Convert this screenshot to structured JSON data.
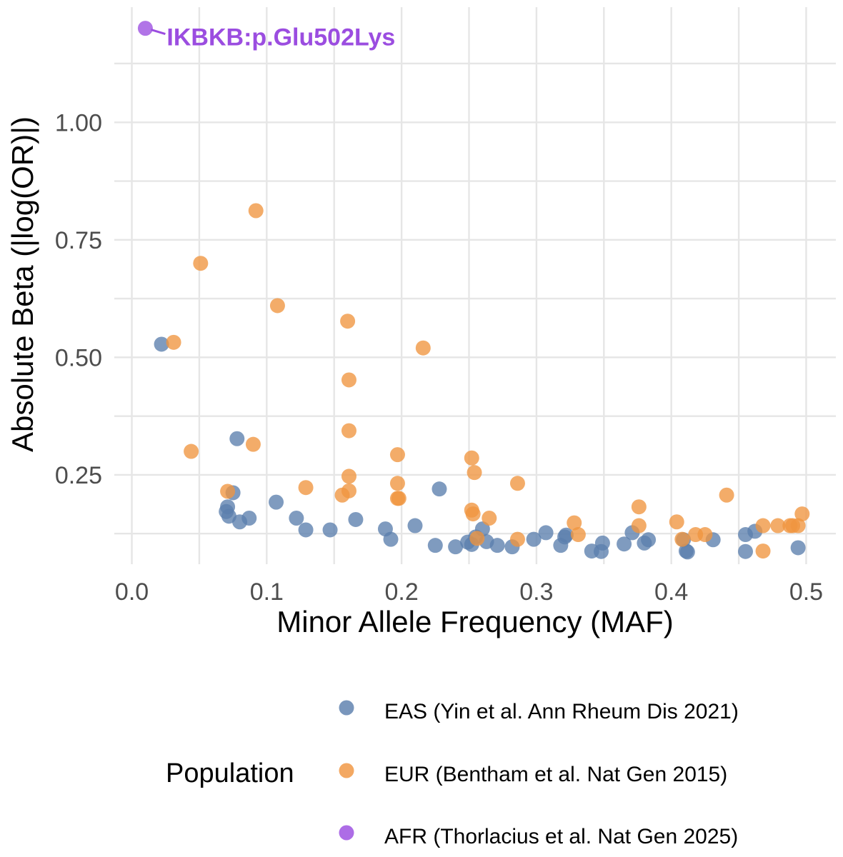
{
  "chart_data": {
    "type": "scatter",
    "xlabel": "Minor Allele Frequency (MAF)",
    "ylabel": "Absolute Beta (|log(OR)|)",
    "xlim": [
      -0.013,
      0.522
    ],
    "ylim": [
      0.06,
      1.245
    ],
    "x_ticks": [
      0.0,
      0.1,
      0.2,
      0.3,
      0.4,
      0.5
    ],
    "x_tick_labels": [
      "0.0",
      "0.1",
      "0.2",
      "0.3",
      "0.4",
      "0.5"
    ],
    "y_ticks": [
      0.25,
      0.5,
      0.75,
      1.0
    ],
    "y_tick_labels": [
      "0.25",
      "0.50",
      "0.75",
      "1.00"
    ],
    "grid": true,
    "legend": {
      "title": "Population",
      "placement": "bottom"
    },
    "series": [
      {
        "name": "EAS (Yin et al. Ann Rheum Dis 2021)",
        "color": "#5b7fad",
        "points": [
          [
            0.022,
            0.528
          ],
          [
            0.078,
            0.327
          ],
          [
            0.075,
            0.212
          ],
          [
            0.071,
            0.182
          ],
          [
            0.07,
            0.172
          ],
          [
            0.072,
            0.162
          ],
          [
            0.08,
            0.15
          ],
          [
            0.087,
            0.158
          ],
          [
            0.107,
            0.192
          ],
          [
            0.122,
            0.158
          ],
          [
            0.129,
            0.133
          ],
          [
            0.147,
            0.133
          ],
          [
            0.166,
            0.155
          ],
          [
            0.188,
            0.135
          ],
          [
            0.192,
            0.113
          ],
          [
            0.21,
            0.142
          ],
          [
            0.225,
            0.1
          ],
          [
            0.228,
            0.22
          ],
          [
            0.24,
            0.097
          ],
          [
            0.249,
            0.107
          ],
          [
            0.252,
            0.102
          ],
          [
            0.255,
            0.118
          ],
          [
            0.26,
            0.135
          ],
          [
            0.263,
            0.108
          ],
          [
            0.271,
            0.1
          ],
          [
            0.282,
            0.097
          ],
          [
            0.298,
            0.113
          ],
          [
            0.307,
            0.127
          ],
          [
            0.318,
            0.1
          ],
          [
            0.321,
            0.118
          ],
          [
            0.322,
            0.122
          ],
          [
            0.341,
            0.088
          ],
          [
            0.348,
            0.087
          ],
          [
            0.349,
            0.105
          ],
          [
            0.365,
            0.103
          ],
          [
            0.371,
            0.127
          ],
          [
            0.38,
            0.105
          ],
          [
            0.383,
            0.112
          ],
          [
            0.409,
            0.112
          ],
          [
            0.411,
            0.088
          ],
          [
            0.412,
            0.086
          ],
          [
            0.431,
            0.112
          ],
          [
            0.455,
            0.087
          ],
          [
            0.455,
            0.123
          ],
          [
            0.462,
            0.13
          ],
          [
            0.494,
            0.095
          ]
        ]
      },
      {
        "name": "EUR (Bentham et al. Nat Gen 2015)",
        "color": "#f0953f",
        "points": [
          [
            0.031,
            0.532
          ],
          [
            0.044,
            0.3
          ],
          [
            0.051,
            0.7
          ],
          [
            0.071,
            0.215
          ],
          [
            0.09,
            0.315
          ],
          [
            0.092,
            0.812
          ],
          [
            0.108,
            0.61
          ],
          [
            0.129,
            0.223
          ],
          [
            0.156,
            0.207
          ],
          [
            0.16,
            0.577
          ],
          [
            0.161,
            0.452
          ],
          [
            0.161,
            0.344
          ],
          [
            0.161,
            0.247
          ],
          [
            0.161,
            0.216
          ],
          [
            0.197,
            0.293
          ],
          [
            0.197,
            0.232
          ],
          [
            0.197,
            0.2
          ],
          [
            0.198,
            0.2
          ],
          [
            0.216,
            0.52
          ],
          [
            0.252,
            0.286
          ],
          [
            0.252,
            0.175
          ],
          [
            0.253,
            0.167
          ],
          [
            0.254,
            0.255
          ],
          [
            0.256,
            0.115
          ],
          [
            0.265,
            0.158
          ],
          [
            0.286,
            0.232
          ],
          [
            0.286,
            0.113
          ],
          [
            0.328,
            0.148
          ],
          [
            0.331,
            0.123
          ],
          [
            0.376,
            0.182
          ],
          [
            0.376,
            0.142
          ],
          [
            0.404,
            0.15
          ],
          [
            0.408,
            0.113
          ],
          [
            0.418,
            0.123
          ],
          [
            0.425,
            0.123
          ],
          [
            0.441,
            0.207
          ],
          [
            0.468,
            0.142
          ],
          [
            0.468,
            0.088
          ],
          [
            0.479,
            0.142
          ],
          [
            0.488,
            0.142
          ],
          [
            0.49,
            0.142
          ],
          [
            0.494,
            0.142
          ],
          [
            0.497,
            0.167
          ]
        ]
      },
      {
        "name": "AFR (Thorlacius et al. Nat Gen 2025)",
        "color": "#9b4de0",
        "points": [
          [
            0.01,
            1.2
          ]
        ]
      }
    ],
    "annotations": [
      {
        "text": "IKBKB:p.Glu502Lys",
        "point": [
          0.01,
          1.2
        ],
        "color": "#9b4de0"
      }
    ]
  }
}
